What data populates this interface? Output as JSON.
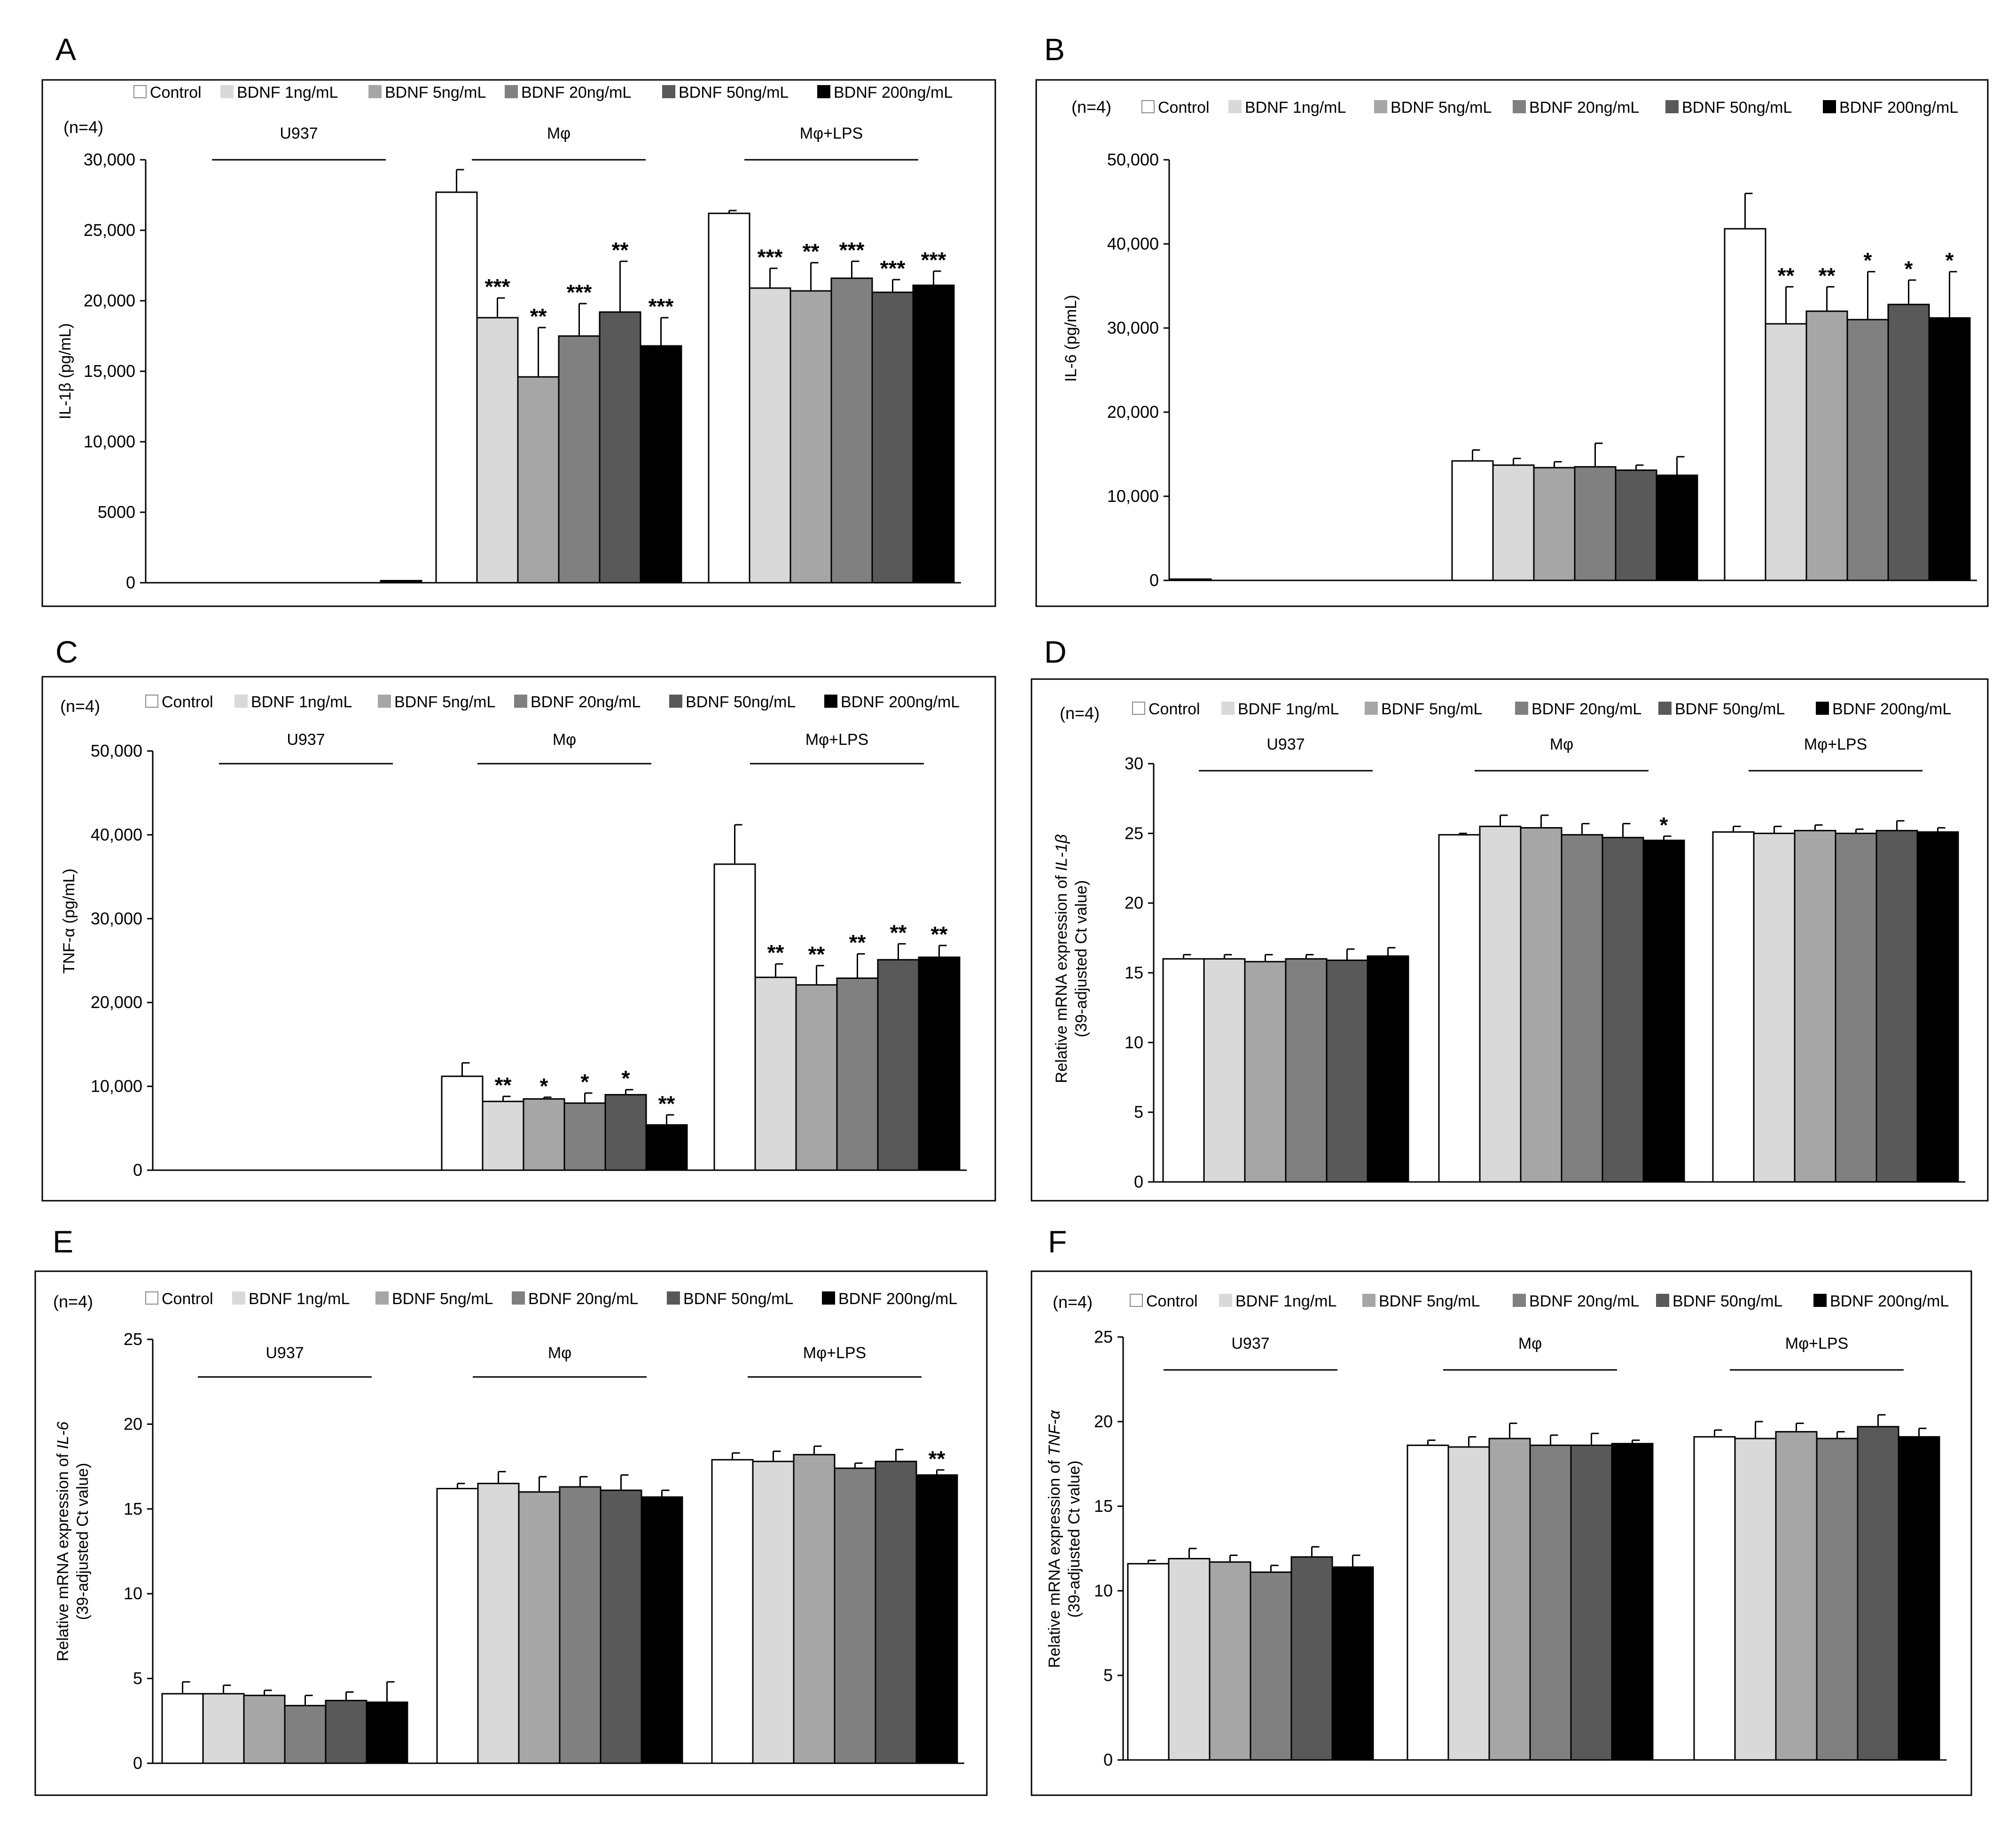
{
  "legend": [
    "Control",
    "BDNF 1ng/mL",
    "BDNF 5ng/mL",
    "BDNF 20ng/mL",
    "BDNF 50ng/mL",
    "BDNF 200ng/mL"
  ],
  "series_colors": [
    "#ffffff",
    "#d9d9d9",
    "#a6a6a6",
    "#808080",
    "#595959",
    "#000000"
  ],
  "chart_data": [
    {
      "panel": "A",
      "type": "bar",
      "n_label": "(n=4)",
      "ylabel": "IL-1β (pg/mL)",
      "ylim": [
        0,
        30000
      ],
      "yticks": [
        0,
        5000,
        10000,
        15000,
        20000,
        25000,
        30000
      ],
      "ytick_labels": [
        "0",
        "5000",
        "10,000",
        "15,000",
        "20,000",
        "25,000",
        "30,000"
      ],
      "groups": [
        "U937",
        "Mφ",
        "Mφ+LPS"
      ],
      "series": [
        {
          "name": "Control",
          "values": [
            0,
            27700,
            26200
          ],
          "errors": [
            0,
            1600,
            200
          ],
          "sig": [
            "",
            "",
            ""
          ]
        },
        {
          "name": "BDNF 1ng/mL",
          "values": [
            0,
            18800,
            20900
          ],
          "errors": [
            0,
            1400,
            1400
          ],
          "sig": [
            "",
            "***",
            "***"
          ]
        },
        {
          "name": "BDNF 5ng/mL",
          "values": [
            0,
            14600,
            20700
          ],
          "errors": [
            0,
            3500,
            2000
          ],
          "sig": [
            "",
            "**",
            "**"
          ]
        },
        {
          "name": "BDNF 20ng/mL",
          "values": [
            0,
            17500,
            21600
          ],
          "errors": [
            0,
            2300,
            1200
          ],
          "sig": [
            "",
            "***",
            "***"
          ]
        },
        {
          "name": "BDNF 50ng/mL",
          "values": [
            0,
            19200,
            20600
          ],
          "errors": [
            0,
            3600,
            900
          ],
          "sig": [
            "",
            "**",
            "***"
          ]
        },
        {
          "name": "BDNF 200ng/mL",
          "values": [
            150,
            16800,
            21100
          ],
          "errors": [
            0,
            2000,
            1000
          ],
          "sig": [
            "",
            "***",
            "***"
          ]
        }
      ]
    },
    {
      "panel": "B",
      "type": "bar",
      "n_label": "(n=4)",
      "ylabel": "IL-6 (pg/mL)",
      "ylim": [
        0,
        50000
      ],
      "yticks": [
        0,
        10000,
        20000,
        30000,
        40000,
        50000
      ],
      "ytick_labels": [
        "0",
        "10,000",
        "20,000",
        "30,000",
        "40,000",
        "50,000"
      ],
      "groups": [
        "",
        "",
        ""
      ],
      "series": [
        {
          "name": "Control",
          "values": [
            150,
            14200,
            41800
          ],
          "errors": [
            0,
            1300,
            4200
          ],
          "sig": [
            "",
            "",
            ""
          ]
        },
        {
          "name": "BDNF 1ng/mL",
          "values": [
            0,
            13700,
            30500
          ],
          "errors": [
            0,
            800,
            4400
          ],
          "sig": [
            "",
            "",
            "**"
          ]
        },
        {
          "name": "BDNF 5ng/mL",
          "values": [
            0,
            13400,
            32000
          ],
          "errors": [
            0,
            700,
            2900
          ],
          "sig": [
            "",
            "",
            "**"
          ]
        },
        {
          "name": "BDNF 20ng/mL",
          "values": [
            0,
            13500,
            31000
          ],
          "errors": [
            0,
            2800,
            5700
          ],
          "sig": [
            "",
            "",
            "*"
          ]
        },
        {
          "name": "BDNF 50ng/mL",
          "values": [
            0,
            13100,
            32800
          ],
          "errors": [
            0,
            600,
            2900
          ],
          "sig": [
            "",
            "",
            "*"
          ]
        },
        {
          "name": "BDNF 200ng/mL",
          "values": [
            0,
            12500,
            31200
          ],
          "errors": [
            0,
            2200,
            5500
          ],
          "sig": [
            "",
            "",
            "*"
          ]
        }
      ]
    },
    {
      "panel": "C",
      "type": "bar",
      "n_label": "(n=4)",
      "ylabel": "TNF-α (pg/mL)",
      "ylim": [
        0,
        50000
      ],
      "yticks": [
        0,
        10000,
        20000,
        30000,
        40000,
        50000
      ],
      "ytick_labels": [
        "0",
        "10,000",
        "20,000",
        "30,000",
        "40,000",
        "50,000"
      ],
      "groups": [
        "U937",
        "Mφ",
        "Mφ+LPS"
      ],
      "series": [
        {
          "name": "Control",
          "values": [
            0,
            11200,
            36500
          ],
          "errors": [
            0,
            1600,
            4700
          ],
          "sig": [
            "",
            "",
            ""
          ]
        },
        {
          "name": "BDNF 1ng/mL",
          "values": [
            0,
            8200,
            23000
          ],
          "errors": [
            0,
            600,
            1600
          ],
          "sig": [
            "",
            "**",
            "**"
          ]
        },
        {
          "name": "BDNF 5ng/mL",
          "values": [
            0,
            8500,
            22100
          ],
          "errors": [
            0,
            200,
            2300
          ],
          "sig": [
            "",
            "*",
            "**"
          ]
        },
        {
          "name": "BDNF 20ng/mL",
          "values": [
            0,
            8000,
            22900
          ],
          "errors": [
            0,
            1200,
            2900
          ],
          "sig": [
            "",
            "*",
            "**"
          ]
        },
        {
          "name": "BDNF 50ng/mL",
          "values": [
            0,
            9000,
            25100
          ],
          "errors": [
            0,
            600,
            1900
          ],
          "sig": [
            "",
            "*",
            "**"
          ]
        },
        {
          "name": "BDNF 200ng/mL",
          "values": [
            0,
            5400,
            25400
          ],
          "errors": [
            0,
            1200,
            1400
          ],
          "sig": [
            "",
            "**",
            "**"
          ]
        }
      ]
    },
    {
      "panel": "D",
      "type": "bar",
      "n_label": "(n=4)",
      "ylabel": "Relative mRNA expression of IL-1β (39-adjusted Ct value)",
      "ylabel_line1_plain": "Relative mRNA expression of ",
      "ylabel_line1_italic": "IL-1β",
      "ylabel_line2": "(39-adjusted Ct value)",
      "ylim": [
        0,
        30
      ],
      "yticks": [
        0,
        5,
        10,
        15,
        20,
        25,
        30
      ],
      "ytick_labels": [
        "0",
        "5",
        "10",
        "15",
        "20",
        "25",
        "30"
      ],
      "groups": [
        "U937",
        "Mφ",
        "Mφ+LPS"
      ],
      "series": [
        {
          "name": "Control",
          "values": [
            16.0,
            24.9,
            25.1
          ],
          "errors": [
            0.3,
            0.1,
            0.4
          ],
          "sig": [
            "",
            "",
            ""
          ]
        },
        {
          "name": "BDNF 1ng/mL",
          "values": [
            16.0,
            25.5,
            25.0
          ],
          "errors": [
            0.3,
            0.8,
            0.5
          ],
          "sig": [
            "",
            "",
            ""
          ]
        },
        {
          "name": "BDNF 5ng/mL",
          "values": [
            15.8,
            25.4,
            25.2
          ],
          "errors": [
            0.5,
            0.9,
            0.4
          ],
          "sig": [
            "",
            "",
            ""
          ]
        },
        {
          "name": "BDNF 20ng/mL",
          "values": [
            16.0,
            24.9,
            25.0
          ],
          "errors": [
            0.3,
            0.8,
            0.3
          ],
          "sig": [
            "",
            "",
            ""
          ]
        },
        {
          "name": "BDNF 50ng/mL",
          "values": [
            15.9,
            24.7,
            25.2
          ],
          "errors": [
            0.8,
            1.0,
            0.7
          ],
          "sig": [
            "",
            "",
            ""
          ]
        },
        {
          "name": "BDNF 200ng/mL",
          "values": [
            16.2,
            24.5,
            25.1
          ],
          "errors": [
            0.6,
            0.3,
            0.3
          ],
          "sig": [
            "",
            "*",
            ""
          ]
        }
      ]
    },
    {
      "panel": "E",
      "type": "bar",
      "n_label": "(n=4)",
      "ylabel": "Relative mRNA expression of IL-6 (39-adjusted Ct value)",
      "ylabel_line1_plain": "Relative mRNA expression of ",
      "ylabel_line1_italic": "IL-6",
      "ylabel_line2": "(39-adjusted Ct value)",
      "ylim": [
        0,
        25
      ],
      "yticks": [
        0,
        5,
        10,
        15,
        20,
        25
      ],
      "ytick_labels": [
        "0",
        "5",
        "10",
        "15",
        "20",
        "25"
      ],
      "groups": [
        "U937",
        "Mφ",
        "Mφ+LPS"
      ],
      "series": [
        {
          "name": "Control",
          "values": [
            4.1,
            16.2,
            17.9
          ],
          "errors": [
            0.7,
            0.3,
            0.4
          ],
          "sig": [
            "",
            "",
            ""
          ]
        },
        {
          "name": "BDNF 1ng/mL",
          "values": [
            4.1,
            16.5,
            17.8
          ],
          "errors": [
            0.5,
            0.7,
            0.6
          ],
          "sig": [
            "",
            "",
            ""
          ]
        },
        {
          "name": "BDNF 5ng/mL",
          "values": [
            4.0,
            16.0,
            18.2
          ],
          "errors": [
            0.3,
            0.9,
            0.5
          ],
          "sig": [
            "",
            "",
            ""
          ]
        },
        {
          "name": "BDNF 20ng/mL",
          "values": [
            3.4,
            16.3,
            17.4
          ],
          "errors": [
            0.6,
            0.6,
            0.3
          ],
          "sig": [
            "",
            "",
            ""
          ]
        },
        {
          "name": "BDNF 50ng/mL",
          "values": [
            3.7,
            16.1,
            17.8
          ],
          "errors": [
            0.5,
            0.9,
            0.7
          ],
          "sig": [
            "",
            "",
            ""
          ]
        },
        {
          "name": "BDNF 200ng/mL",
          "values": [
            3.6,
            15.7,
            17.0
          ],
          "errors": [
            1.2,
            0.4,
            0.3
          ],
          "sig": [
            "",
            "",
            "**"
          ]
        }
      ]
    },
    {
      "panel": "F",
      "type": "bar",
      "n_label": "(n=4)",
      "ylabel": "Relative mRNA expression of TNF-α (39-adjusted Ct value)",
      "ylabel_line1_plain": "Relative mRNA expression of ",
      "ylabel_line1_italic": "TNF-α",
      "ylabel_line2": "(39-adjusted Ct value)",
      "ylim": [
        0,
        25
      ],
      "yticks": [
        0,
        5,
        10,
        15,
        20,
        25
      ],
      "ytick_labels": [
        "0",
        "5",
        "10",
        "15",
        "20",
        "25"
      ],
      "groups": [
        "U937",
        "Mφ",
        "Mφ+LPS"
      ],
      "series": [
        {
          "name": "Control",
          "values": [
            11.6,
            18.6,
            19.1
          ],
          "errors": [
            0.2,
            0.3,
            0.4
          ],
          "sig": [
            "",
            "",
            ""
          ]
        },
        {
          "name": "BDNF 1ng/mL",
          "values": [
            11.9,
            18.5,
            19.0
          ],
          "errors": [
            0.6,
            0.6,
            1.0
          ],
          "sig": [
            "",
            "",
            ""
          ]
        },
        {
          "name": "BDNF 5ng/mL",
          "values": [
            11.7,
            19.0,
            19.4
          ],
          "errors": [
            0.4,
            0.9,
            0.5
          ],
          "sig": [
            "",
            "",
            ""
          ]
        },
        {
          "name": "BDNF 20ng/mL",
          "values": [
            11.1,
            18.6,
            19.0
          ],
          "errors": [
            0.4,
            0.6,
            0.4
          ],
          "sig": [
            "",
            "",
            ""
          ]
        },
        {
          "name": "BDNF 50ng/mL",
          "values": [
            12.0,
            18.6,
            19.7
          ],
          "errors": [
            0.6,
            0.7,
            0.7
          ],
          "sig": [
            "",
            "",
            ""
          ]
        },
        {
          "name": "BDNF 200ng/mL",
          "values": [
            11.4,
            18.7,
            19.1
          ],
          "errors": [
            0.7,
            0.2,
            0.5
          ],
          "sig": [
            "",
            "",
            ""
          ]
        }
      ]
    }
  ]
}
